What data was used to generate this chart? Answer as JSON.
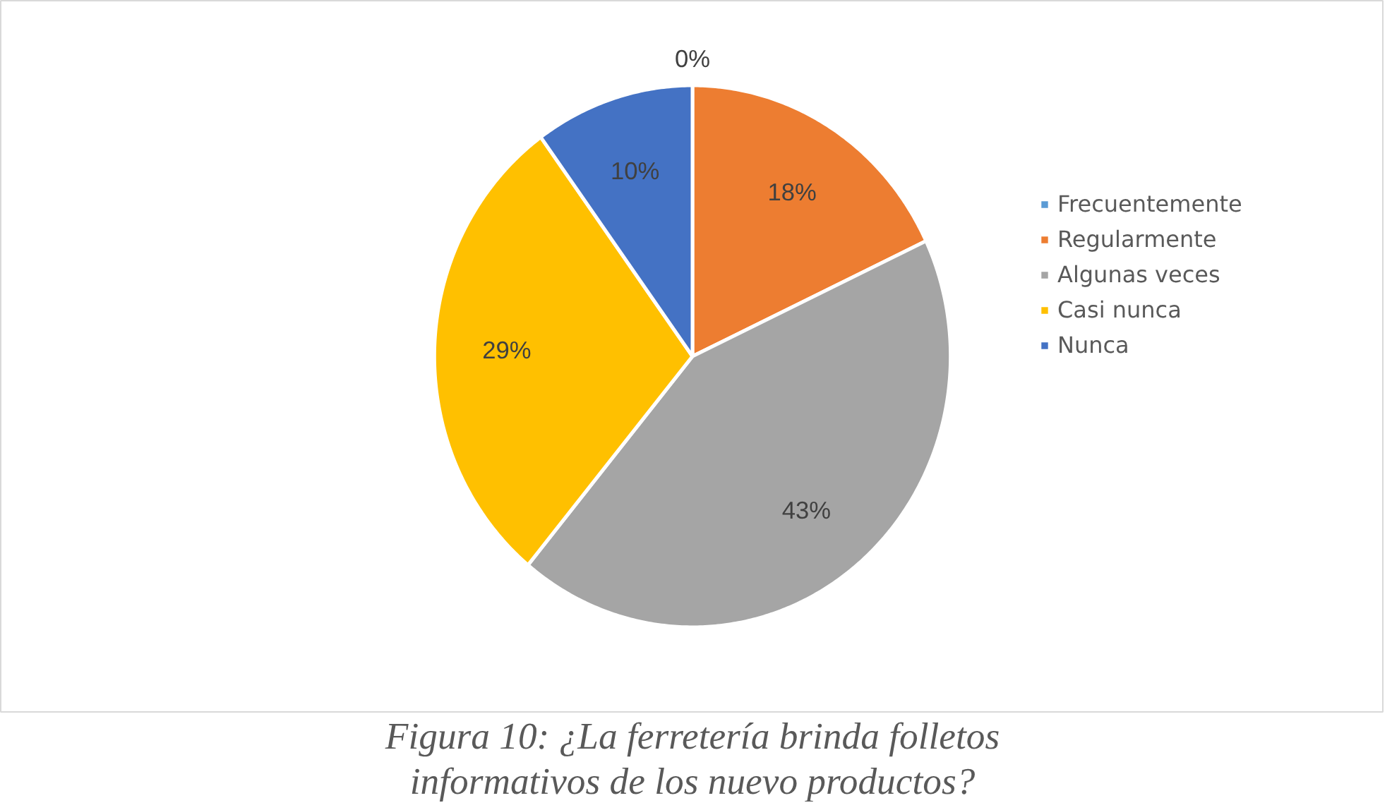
{
  "chart_data": {
    "type": "pie",
    "title": "Figura 10: ¿La ferretería brinda folletos informativos de los nuevo productos?",
    "categories": [
      "Frecuentemente",
      "Regularmente",
      "Algunas veces",
      "Casi nunca",
      "Nunca"
    ],
    "values": [
      0,
      18,
      43,
      29,
      10
    ],
    "colors": [
      "#5b9bd5",
      "#ed7d31",
      "#a5a5a5",
      "#ffc000",
      "#4472c4"
    ],
    "value_labels": [
      "0%",
      "18%",
      "43%",
      "29%",
      "10%"
    ],
    "legend": "right"
  }
}
